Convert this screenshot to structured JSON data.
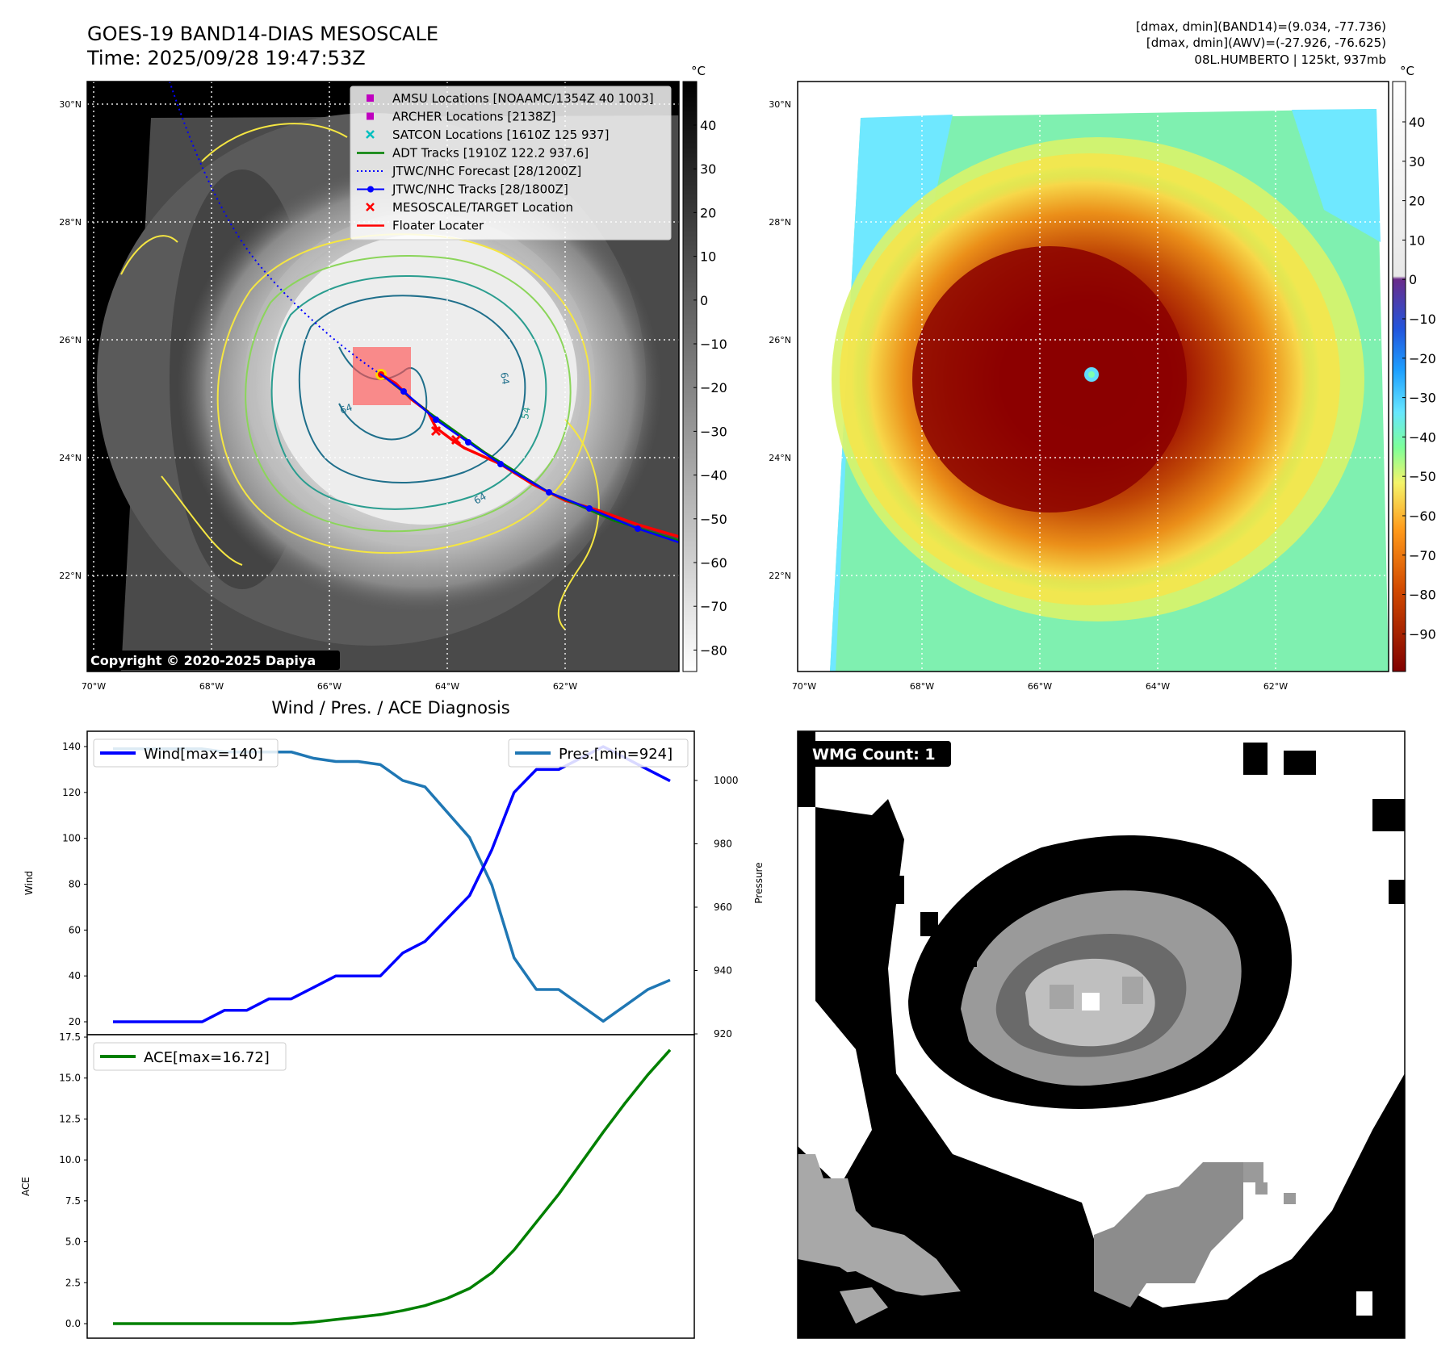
{
  "header": {
    "title_line1": "GOES-19 BAND14-DIAS MESOSCALE",
    "title_line2": "Time: 2025/09/28 19:47:53Z",
    "stats_line1": "[dmax, dmin](BAND14)=(9.034, -77.736)",
    "stats_line2": "[dmax, dmin](AWV)=(-27.926, -76.625)",
    "stats_line3": "08L.HUMBERTO | 125kt, 937mb"
  },
  "map": {
    "lat_labels": [
      "30°N",
      "28°N",
      "26°N",
      "24°N",
      "22°N"
    ],
    "lon_labels": [
      "70°W",
      "68°W",
      "66°W",
      "64°W",
      "62°W"
    ],
    "contour_labels": [
      "64",
      "64",
      "54",
      "64"
    ],
    "copyright": "Copyright © 2020-2025 Dapiya",
    "legend": [
      {
        "label": "AMSU Locations [NOAAMC/1354Z 40 1003]",
        "color": "#bf00bf",
        "marker": "square"
      },
      {
        "label": "ARCHER Locations [2138Z]",
        "color": "#bf00bf",
        "marker": "square"
      },
      {
        "label": "SATCON Locations [1610Z 125 937]",
        "color": "#00bfbf",
        "marker": "x"
      },
      {
        "label": "ADT Tracks [1910Z 122.2 937.6]",
        "color": "#008000",
        "marker": "line"
      },
      {
        "label": "JTWC/NHC Forecast [28/1200Z]",
        "color": "#0000ff",
        "marker": "dotted"
      },
      {
        "label": "JTWC/NHC Tracks [28/1800Z]",
        "color": "#0000ff",
        "marker": "line-dot"
      },
      {
        "label": "MESOSCALE/TARGET Location",
        "color": "#ff0000",
        "marker": "x"
      },
      {
        "label": "Floater Locater",
        "color": "#ff0000",
        "marker": "line"
      }
    ],
    "colorbar_gray": {
      "unit": "°C",
      "ticks": [
        "40",
        "30",
        "20",
        "10",
        "0",
        "−10",
        "−20",
        "−30",
        "−40",
        "−50",
        "−60",
        "−70",
        "−80"
      ]
    },
    "colorbar_color": {
      "unit": "°C",
      "ticks": [
        "40",
        "30",
        "20",
        "10",
        "0",
        "−10",
        "−20",
        "−30",
        "−40",
        "−50",
        "−60",
        "−70",
        "−80",
        "−90"
      ]
    }
  },
  "diagnosis": {
    "title": "Wind / Pres. / ACE Diagnosis",
    "wind_legend": "Wind[max=140]",
    "pres_legend": "Pres.[min=924]",
    "ace_legend": "ACE[max=16.72]",
    "ylabel_wind": "Wind",
    "ylabel_pres": "Pressure",
    "ylabel_ace": "ACE",
    "wind_ticks": [
      "140",
      "120",
      "100",
      "80",
      "60",
      "40",
      "20"
    ],
    "pres_ticks": [
      "1000",
      "980",
      "960",
      "940",
      "920"
    ],
    "ace_ticks": [
      "17.5",
      "15.0",
      "12.5",
      "10.0",
      "7.5",
      "5.0",
      "2.5",
      "0.0"
    ]
  },
  "wmg": {
    "badge": "WMG Count: 1"
  },
  "chart_data": [
    {
      "type": "line",
      "title": "Wind / Pres. / ACE Diagnosis",
      "ylabel": "Wind",
      "ylim": [
        20,
        145
      ],
      "series": [
        {
          "name": "Wind[max=140]",
          "color": "#0000ff",
          "values": [
            20,
            20,
            20,
            20,
            20,
            25,
            25,
            30,
            30,
            35,
            40,
            40,
            40,
            50,
            55,
            65,
            75,
            95,
            120,
            130,
            130,
            135,
            140,
            135,
            130,
            125
          ]
        }
      ]
    },
    {
      "type": "line",
      "ylabel": "Pressure",
      "ylim": [
        920,
        1015
      ],
      "series": [
        {
          "name": "Pres.[min=924]",
          "color": "#1f77b4",
          "values": [
            1010,
            1010,
            1010,
            1010,
            1010,
            1009,
            1009,
            1009,
            1009,
            1007,
            1006,
            1006,
            1005,
            1000,
            998,
            990,
            982,
            967,
            944,
            934,
            934,
            929,
            924,
            929,
            934,
            937
          ]
        }
      ]
    },
    {
      "type": "line",
      "ylabel": "ACE",
      "ylim": [
        -0.9,
        17.5
      ],
      "series": [
        {
          "name": "ACE[max=16.72]",
          "color": "#008000",
          "values": [
            0,
            0,
            0,
            0,
            0,
            0,
            0,
            0,
            0,
            0.1,
            0.25,
            0.4,
            0.55,
            0.8,
            1.1,
            1.55,
            2.15,
            3.1,
            4.5,
            6.2,
            7.9,
            9.8,
            11.7,
            13.5,
            15.2,
            16.72
          ]
        }
      ]
    }
  ]
}
